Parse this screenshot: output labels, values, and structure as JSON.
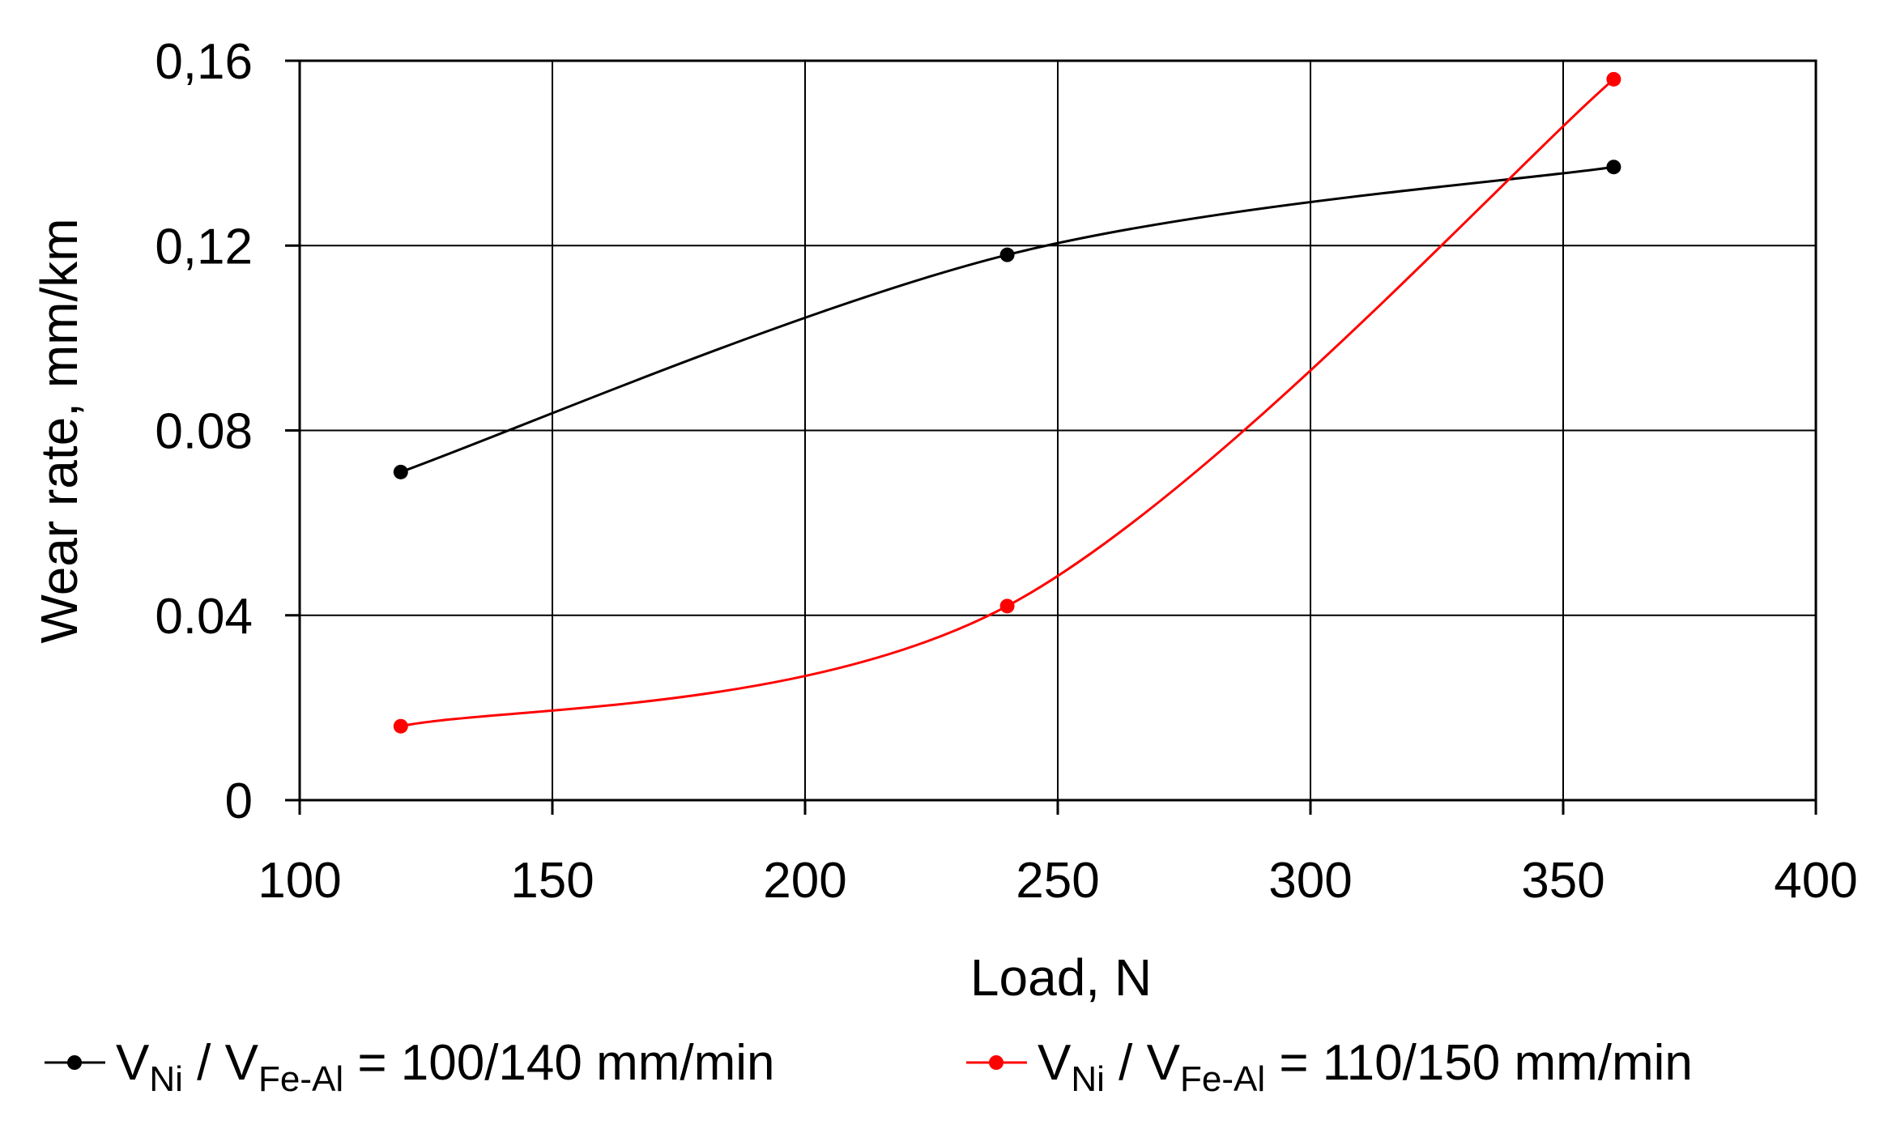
{
  "chart_data": {
    "type": "line",
    "title": "",
    "xlabel": "Load, N",
    "ylabel": "Wear rate, mm/km",
    "xlim": [
      100,
      400
    ],
    "ylim": [
      0,
      0.16
    ],
    "xticks": [
      100,
      150,
      200,
      250,
      300,
      350,
      400
    ],
    "xtick_labels": [
      "100",
      "150",
      "200",
      "250",
      "300",
      "350",
      "400"
    ],
    "yticks": [
      0,
      0.04,
      0.08,
      0.12,
      0.16
    ],
    "ytick_labels": [
      "0",
      "0.04",
      "0.08",
      "0,12",
      "0,16"
    ],
    "grid": true,
    "legend_position": "bottom",
    "series": [
      {
        "name": "VNi / VFe-Al = 100/140 mm/min",
        "legend": {
          "v1": "V",
          "s1": "Ni",
          "sep": " / ",
          "v2": "V",
          "s2": "Fe-Al",
          "rest": " = 100/140 mm/min"
        },
        "color": "#000000",
        "x": [
          120,
          240,
          360
        ],
        "y": [
          0.071,
          0.118,
          0.137
        ]
      },
      {
        "name": "VNi / VFe-Al = 110/150 mm/min",
        "legend": {
          "v1": "V",
          "s1": "Ni",
          "sep": " / ",
          "v2": "V",
          "s2": "Fe-Al",
          "rest": " = 110/150 mm/min"
        },
        "color": "#ff0000",
        "x": [
          120,
          240,
          360
        ],
        "y": [
          0.016,
          0.042,
          0.156
        ]
      }
    ]
  }
}
